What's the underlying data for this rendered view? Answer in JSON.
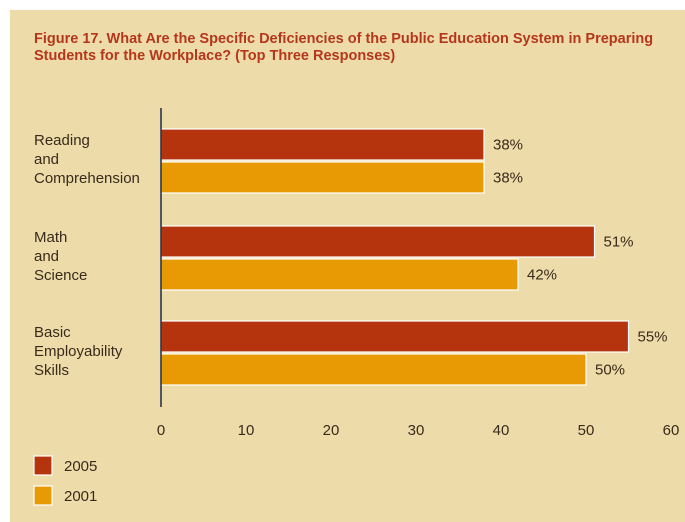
{
  "chart_data": {
    "type": "bar",
    "orientation": "horizontal",
    "title": "Figure 17. What Are the Specific Deficiencies of the Public Education System in Preparing Students for the Workplace? (Top Three Responses)",
    "categories": [
      [
        "Reading",
        "and",
        "Comprehension"
      ],
      [
        "Math",
        "and",
        "Science"
      ],
      [
        "Basic",
        "Employability",
        "Skills"
      ]
    ],
    "series": [
      {
        "name": "2005",
        "color": "#b5340e",
        "values": [
          38,
          51,
          55
        ],
        "labels": [
          "38%",
          "51%",
          "55%"
        ]
      },
      {
        "name": "2001",
        "color": "#e89a05",
        "values": [
          38,
          42,
          50
        ],
        "labels": [
          "38%",
          "42%",
          "50%"
        ]
      }
    ],
    "xlim": [
      0,
      60
    ],
    "xticks": [
      "0",
      "10",
      "20",
      "30",
      "40",
      "50",
      "60"
    ],
    "grid": false,
    "legend_placement": "bottom-left"
  }
}
